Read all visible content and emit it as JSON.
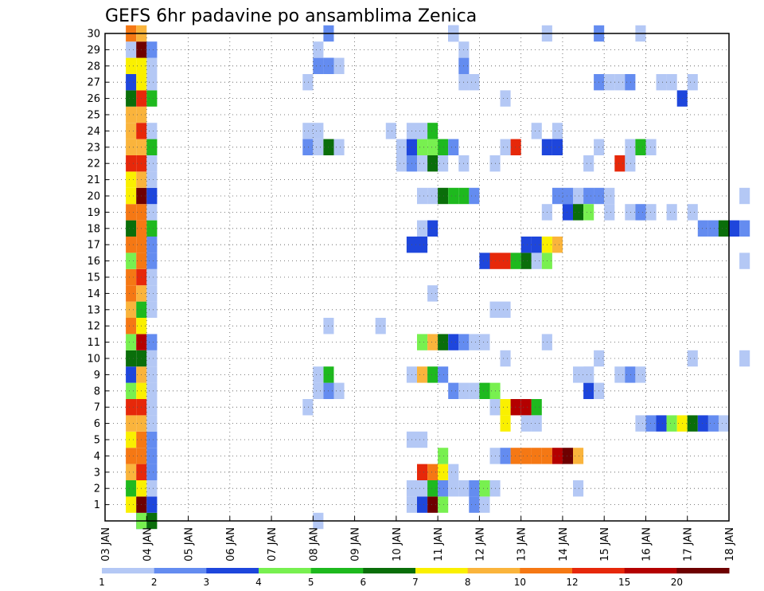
{
  "chart_data": {
    "type": "heatmap",
    "title": "GEFS 6hr padavine po ansamblima Zenica",
    "xlabel": "",
    "ylabel": "",
    "x_tick_labels": [
      "03 JAN",
      "04 JAN",
      "05 JAN",
      "06 JAN",
      "07 JAN",
      "08 JAN",
      "09 JAN",
      "10 JAN",
      "11 JAN",
      "12 JAN",
      "13 JAN",
      "14 JAN",
      "15 JAN",
      "16 JAN",
      "17 JAN",
      "18 JAN"
    ],
    "y_tick_labels": [
      "1",
      "2",
      "3",
      "4",
      "5",
      "6",
      "7",
      "8",
      "9",
      "10",
      "11",
      "12",
      "13",
      "14",
      "15",
      "16",
      "17",
      "18",
      "19",
      "20",
      "21",
      "22",
      "23",
      "24",
      "25",
      "26",
      "27",
      "28",
      "29",
      "30"
    ],
    "xlim_days": [
      0,
      15
    ],
    "ylim_members": [
      0,
      30
    ],
    "grid": "dotted",
    "colorbar": {
      "levels": [
        "1",
        "2",
        "3",
        "4",
        "5",
        "6",
        "7",
        "8",
        "10",
        "12",
        "15",
        "20"
      ],
      "colors": [
        "#b4c8f5",
        "#648cf0",
        "#1e46dc",
        "#78f050",
        "#1eb91e",
        "#0a6e0a",
        "#faf000",
        "#fab43c",
        "#f57814",
        "#e6280a",
        "#b40000",
        "#6e0000"
      ]
    },
    "cells": [
      [
        0.75,
        0,
        2
      ],
      [
        0.75,
        0,
        3
      ],
      [
        1,
        0,
        5
      ],
      [
        0.5,
        1,
        6
      ],
      [
        0.75,
        1,
        11
      ],
      [
        1,
        1,
        2
      ],
      [
        0.5,
        2,
        4
      ],
      [
        0.75,
        2,
        6
      ],
      [
        1,
        2,
        0
      ],
      [
        0.5,
        3,
        7
      ],
      [
        0.75,
        3,
        9
      ],
      [
        1,
        3,
        1
      ],
      [
        0.5,
        4,
        8
      ],
      [
        0.75,
        4,
        8
      ],
      [
        1,
        4,
        1
      ],
      [
        0.5,
        5,
        6
      ],
      [
        0.75,
        5,
        8
      ],
      [
        1,
        5,
        1
      ],
      [
        0.5,
        6,
        7
      ],
      [
        0.75,
        6,
        7
      ],
      [
        1,
        6,
        0
      ],
      [
        0.5,
        7,
        9
      ],
      [
        0.75,
        7,
        9
      ],
      [
        1,
        7,
        0
      ],
      [
        0.5,
        8,
        3
      ],
      [
        0.75,
        8,
        6
      ],
      [
        1,
        8,
        0
      ],
      [
        0.5,
        9,
        2
      ],
      [
        0.75,
        9,
        7
      ],
      [
        1,
        9,
        0
      ],
      [
        0.5,
        10,
        5
      ],
      [
        0.75,
        10,
        5
      ],
      [
        1,
        10,
        0
      ],
      [
        0.5,
        11,
        3
      ],
      [
        0.75,
        11,
        10
      ],
      [
        1,
        11,
        1
      ],
      [
        0.5,
        12,
        8
      ],
      [
        0.75,
        12,
        6
      ],
      [
        0.5,
        13,
        7
      ],
      [
        0.75,
        13,
        4
      ],
      [
        1,
        13,
        0
      ],
      [
        0.5,
        14,
        8
      ],
      [
        0.75,
        14,
        7
      ],
      [
        1,
        14,
        0
      ],
      [
        0.5,
        15,
        8
      ],
      [
        0.75,
        15,
        9
      ],
      [
        1,
        15,
        0
      ],
      [
        0.5,
        16,
        3
      ],
      [
        0.75,
        16,
        8
      ],
      [
        1,
        16,
        1
      ],
      [
        0.5,
        17,
        8
      ],
      [
        0.75,
        17,
        8
      ],
      [
        1,
        17,
        1
      ],
      [
        0.5,
        18,
        5
      ],
      [
        0.75,
        18,
        8
      ],
      [
        1,
        18,
        4
      ],
      [
        0.5,
        19,
        8
      ],
      [
        0.75,
        19,
        8
      ],
      [
        1,
        19,
        0
      ],
      [
        0.5,
        20,
        6
      ],
      [
        0.75,
        20,
        11
      ],
      [
        1,
        20,
        2
      ],
      [
        0.5,
        21,
        6
      ],
      [
        0.75,
        21,
        7
      ],
      [
        1,
        21,
        0
      ],
      [
        0.5,
        22,
        9
      ],
      [
        0.75,
        22,
        9
      ],
      [
        1,
        22,
        0
      ],
      [
        0.5,
        23,
        7
      ],
      [
        0.75,
        23,
        7
      ],
      [
        1,
        23,
        4
      ],
      [
        0.5,
        24,
        7
      ],
      [
        0.75,
        24,
        9
      ],
      [
        1,
        24,
        0
      ],
      [
        0.5,
        25,
        7
      ],
      [
        0.75,
        25,
        7
      ],
      [
        0.5,
        26,
        5
      ],
      [
        0.75,
        26,
        9
      ],
      [
        1,
        26,
        4
      ],
      [
        0.5,
        27,
        2
      ],
      [
        0.75,
        27,
        6
      ],
      [
        1,
        27,
        0
      ],
      [
        0.5,
        28,
        6
      ],
      [
        0.75,
        28,
        6
      ],
      [
        1,
        28,
        0
      ],
      [
        0.5,
        29,
        0
      ],
      [
        0.75,
        29,
        11
      ],
      [
        1,
        29,
        1
      ],
      [
        0.5,
        30,
        8
      ],
      [
        0.75,
        30,
        7
      ],
      [
        5,
        0,
        0
      ],
      [
        5,
        8,
        0
      ],
      [
        5.25,
        8,
        1
      ],
      [
        5.5,
        8,
        0
      ],
      [
        5.25,
        9,
        4
      ],
      [
        5,
        9,
        0
      ],
      [
        4.75,
        7,
        0
      ],
      [
        5.25,
        28,
        1
      ],
      [
        5.25,
        28,
        1
      ],
      [
        5,
        28,
        1
      ],
      [
        5.5,
        28,
        0
      ],
      [
        4.75,
        27,
        0
      ],
      [
        5,
        29,
        0
      ],
      [
        5.25,
        30,
        1
      ],
      [
        4.75,
        24,
        0
      ],
      [
        5,
        24,
        0
      ],
      [
        4.75,
        23,
        1
      ],
      [
        5,
        23,
        0
      ],
      [
        5.25,
        23,
        5
      ],
      [
        5.5,
        23,
        0
      ],
      [
        5.25,
        12,
        0
      ],
      [
        6.5,
        12,
        0
      ],
      [
        7.25,
        1,
        0
      ],
      [
        7.5,
        1,
        2
      ],
      [
        7.75,
        1,
        11
      ],
      [
        8,
        1,
        3
      ],
      [
        8.75,
        1,
        1
      ],
      [
        9,
        1,
        0
      ],
      [
        7.25,
        2,
        0
      ],
      [
        7.5,
        2,
        0
      ],
      [
        7.75,
        2,
        4
      ],
      [
        8,
        2,
        1
      ],
      [
        8.25,
        2,
        0
      ],
      [
        8.5,
        2,
        0
      ],
      [
        8.75,
        2,
        1
      ],
      [
        9,
        2,
        3
      ],
      [
        9.25,
        2,
        0
      ],
      [
        7.5,
        3,
        9
      ],
      [
        7.75,
        3,
        8
      ],
      [
        8,
        3,
        6
      ],
      [
        8.25,
        3,
        0
      ],
      [
        8,
        4,
        3
      ],
      [
        7.25,
        5,
        0
      ],
      [
        7.5,
        5,
        0
      ],
      [
        7.25,
        9,
        0
      ],
      [
        7.5,
        9,
        7
      ],
      [
        7.75,
        9,
        4
      ],
      [
        8,
        9,
        1
      ],
      [
        8.25,
        8,
        1
      ],
      [
        8.5,
        8,
        0
      ],
      [
        8.75,
        8,
        0
      ],
      [
        9,
        8,
        4
      ],
      [
        9.25,
        8,
        3
      ],
      [
        9.25,
        7,
        0
      ],
      [
        9.5,
        7,
        6
      ],
      [
        9.75,
        7,
        10
      ],
      [
        10,
        7,
        10
      ],
      [
        10.25,
        7,
        4
      ],
      [
        9.5,
        6,
        6
      ],
      [
        10,
        6,
        0
      ],
      [
        10.25,
        6,
        0
      ],
      [
        9.25,
        4,
        0
      ],
      [
        9.5,
        4,
        1
      ],
      [
        9.75,
        4,
        8
      ],
      [
        10,
        4,
        8
      ],
      [
        10.25,
        4,
        8
      ],
      [
        10.5,
        4,
        8
      ],
      [
        10.75,
        4,
        10
      ],
      [
        11,
        4,
        11
      ],
      [
        11.25,
        4,
        7
      ],
      [
        7.5,
        11,
        3
      ],
      [
        7.75,
        11,
        7
      ],
      [
        8,
        11,
        5
      ],
      [
        8.25,
        11,
        2
      ],
      [
        8.5,
        11,
        1
      ],
      [
        8.75,
        11,
        0
      ],
      [
        9,
        11,
        0
      ],
      [
        7.75,
        14,
        0
      ],
      [
        9.25,
        13,
        0
      ],
      [
        9.5,
        13,
        0
      ],
      [
        9.5,
        10,
        0
      ],
      [
        7.25,
        17,
        2
      ],
      [
        7.5,
        17,
        2
      ],
      [
        7.5,
        18,
        0
      ],
      [
        7.75,
        18,
        2
      ],
      [
        9,
        16,
        2
      ],
      [
        9.25,
        16,
        9
      ],
      [
        9.5,
        16,
        9
      ],
      [
        9.75,
        16,
        4
      ],
      [
        10,
        16,
        5
      ],
      [
        10.25,
        16,
        0
      ],
      [
        10.5,
        16,
        3
      ],
      [
        10.75,
        17,
        7
      ],
      [
        10,
        17,
        2
      ],
      [
        10.25,
        17,
        2
      ],
      [
        10.5,
        17,
        6
      ],
      [
        7.5,
        20,
        0
      ],
      [
        7.75,
        20,
        0
      ],
      [
        8,
        20,
        5
      ],
      [
        8.25,
        20,
        4
      ],
      [
        8.5,
        20,
        4
      ],
      [
        8.75,
        20,
        1
      ],
      [
        7,
        22,
        0
      ],
      [
        7.25,
        22,
        1
      ],
      [
        7.5,
        22,
        0
      ],
      [
        7.75,
        22,
        5
      ],
      [
        8,
        22,
        0
      ],
      [
        8.5,
        22,
        0
      ],
      [
        7,
        23,
        0
      ],
      [
        7.25,
        23,
        2
      ],
      [
        7.5,
        23,
        3
      ],
      [
        7.75,
        23,
        3
      ],
      [
        8,
        23,
        4
      ],
      [
        8.25,
        23,
        1
      ],
      [
        7.25,
        24,
        0
      ],
      [
        7.5,
        24,
        0
      ],
      [
        7.75,
        24,
        4
      ],
      [
        6.75,
        24,
        0
      ],
      [
        8.5,
        29,
        0
      ],
      [
        8.25,
        30,
        1
      ],
      [
        8.5,
        28,
        1
      ],
      [
        8.5,
        27,
        0
      ],
      [
        8.75,
        27,
        0
      ],
      [
        8.25,
        30,
        0
      ],
      [
        9.25,
        22,
        0
      ],
      [
        9.5,
        23,
        0
      ],
      [
        9.75,
        23,
        9
      ],
      [
        9.5,
        26,
        0
      ],
      [
        10.5,
        30,
        0
      ],
      [
        11.75,
        30,
        1
      ],
      [
        11.75,
        27,
        1
      ],
      [
        12,
        27,
        0
      ],
      [
        12.25,
        27,
        0
      ],
      [
        12.5,
        27,
        1
      ],
      [
        12.75,
        30,
        0
      ],
      [
        13.25,
        27,
        0
      ],
      [
        13.5,
        27,
        0
      ],
      [
        14,
        27,
        0
      ],
      [
        13.75,
        26,
        2
      ],
      [
        10.25,
        24,
        0
      ],
      [
        10.75,
        24,
        0
      ],
      [
        10.5,
        23,
        2
      ],
      [
        10.75,
        23,
        2
      ],
      [
        11.75,
        23,
        0
      ],
      [
        12.5,
        23,
        0
      ],
      [
        12.75,
        23,
        4
      ],
      [
        13,
        23,
        0
      ],
      [
        11.5,
        22,
        0
      ],
      [
        12.25,
        22,
        9
      ],
      [
        12.5,
        22,
        0
      ],
      [
        10.75,
        20,
        1
      ],
      [
        11,
        20,
        1
      ],
      [
        11.25,
        20,
        0
      ],
      [
        11.5,
        20,
        1
      ],
      [
        11.75,
        20,
        1
      ],
      [
        12,
        20,
        0
      ],
      [
        10.5,
        19,
        0
      ],
      [
        11,
        19,
        2
      ],
      [
        11.25,
        19,
        5
      ],
      [
        11.5,
        19,
        3
      ],
      [
        12,
        19,
        0
      ],
      [
        12.5,
        19,
        0
      ],
      [
        12.75,
        19,
        1
      ],
      [
        13,
        19,
        0
      ],
      [
        13.5,
        19,
        0
      ],
      [
        14,
        19,
        0
      ],
      [
        14.25,
        18,
        1
      ],
      [
        14.5,
        18,
        1
      ],
      [
        14.75,
        18,
        5
      ],
      [
        15,
        18,
        2
      ],
      [
        15.25,
        18,
        1
      ],
      [
        15.25,
        20,
        0
      ],
      [
        15.25,
        16,
        0
      ],
      [
        10.5,
        11,
        0
      ],
      [
        12.75,
        6,
        0
      ],
      [
        13,
        6,
        1
      ],
      [
        13.25,
        6,
        2
      ],
      [
        13.5,
        6,
        3
      ],
      [
        13.75,
        6,
        6
      ],
      [
        14,
        6,
        5
      ],
      [
        14.25,
        6,
        2
      ],
      [
        14.5,
        6,
        1
      ],
      [
        14.75,
        6,
        0
      ],
      [
        12.25,
        9,
        0
      ],
      [
        12.5,
        9,
        1
      ],
      [
        12.75,
        9,
        0
      ],
      [
        11.5,
        8,
        2
      ],
      [
        11.75,
        8,
        0
      ],
      [
        11.25,
        9,
        0
      ],
      [
        11.5,
        9,
        0
      ],
      [
        11.5,
        9,
        0
      ],
      [
        11.75,
        10,
        0
      ],
      [
        11.25,
        2,
        0
      ],
      [
        15.25,
        10,
        0
      ],
      [
        14,
        10,
        0
      ]
    ]
  }
}
